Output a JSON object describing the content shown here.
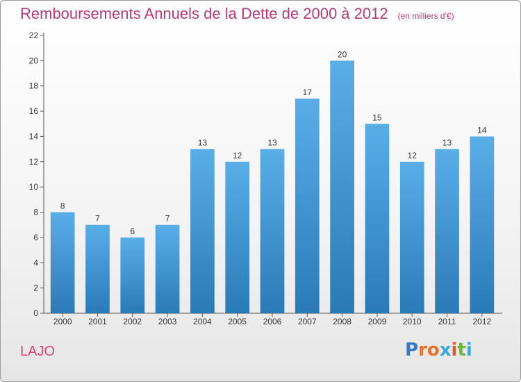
{
  "title": "Remboursements Annuels de la Dette de 2000 à 2012",
  "unit": "(en milliers d'€)",
  "commune": "LAJO",
  "brand": {
    "text": "Proxiti",
    "letter_colors": [
      "#3a78c2",
      "#e2732f",
      "#e2732f",
      "#3aa7d8",
      "#e25a2a",
      "#6fb43a",
      "#3aa7d8"
    ]
  },
  "chart_data": {
    "type": "bar",
    "categories": [
      "2000",
      "2001",
      "2002",
      "2003",
      "2004",
      "2005",
      "2006",
      "2007",
      "2008",
      "2009",
      "2010",
      "2011",
      "2012"
    ],
    "values": [
      8,
      7,
      6,
      7,
      13,
      12,
      13,
      17,
      20,
      15,
      12,
      13,
      14
    ],
    "title": "Remboursements Annuels de la Dette de 2000 à 2012",
    "ylim": [
      0,
      22
    ],
    "yticks": [
      0,
      2,
      4,
      6,
      8,
      10,
      12,
      14,
      16,
      18,
      20,
      22
    ],
    "grid": false,
    "bar_color_top": "#5aaee8",
    "bar_color_bottom": "#2a7ab8",
    "label_color": "#333333"
  }
}
